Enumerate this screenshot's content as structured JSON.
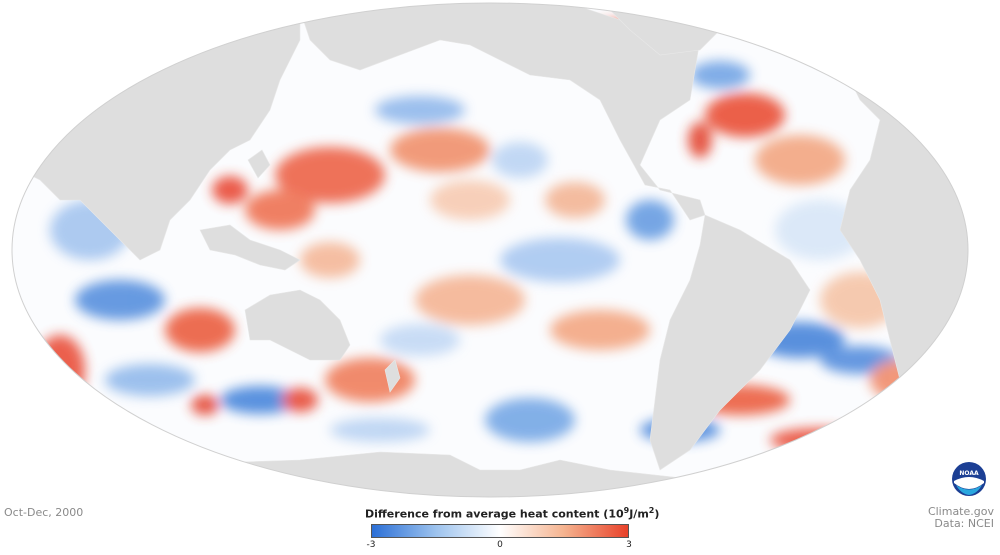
{
  "period": "Oct-Dec, 2000",
  "legend": {
    "title": "Difference from average heat content",
    "unit_base": "10",
    "unit_exp": "9",
    "unit_rest": "J/m",
    "unit_exp2": "2",
    "min_label": "-3",
    "mid_label": "0",
    "max_label": "3",
    "colors": [
      "#2b6fd6",
      "#9dc3ee",
      "#ffffff",
      "#f5b38f",
      "#e8412a"
    ]
  },
  "credit": {
    "site": "Climate.gov",
    "data": "Data: NCEI"
  },
  "logo": {
    "text": "NOAA",
    "icon": "noaa-logo-icon"
  },
  "map": {
    "ocean_color": "#fdfdfd",
    "land_color": "#dedede",
    "projection": "mollweide",
    "center": "pacific",
    "warm_color": "#e9442b",
    "cool_color": "#3c7fd9"
  }
}
